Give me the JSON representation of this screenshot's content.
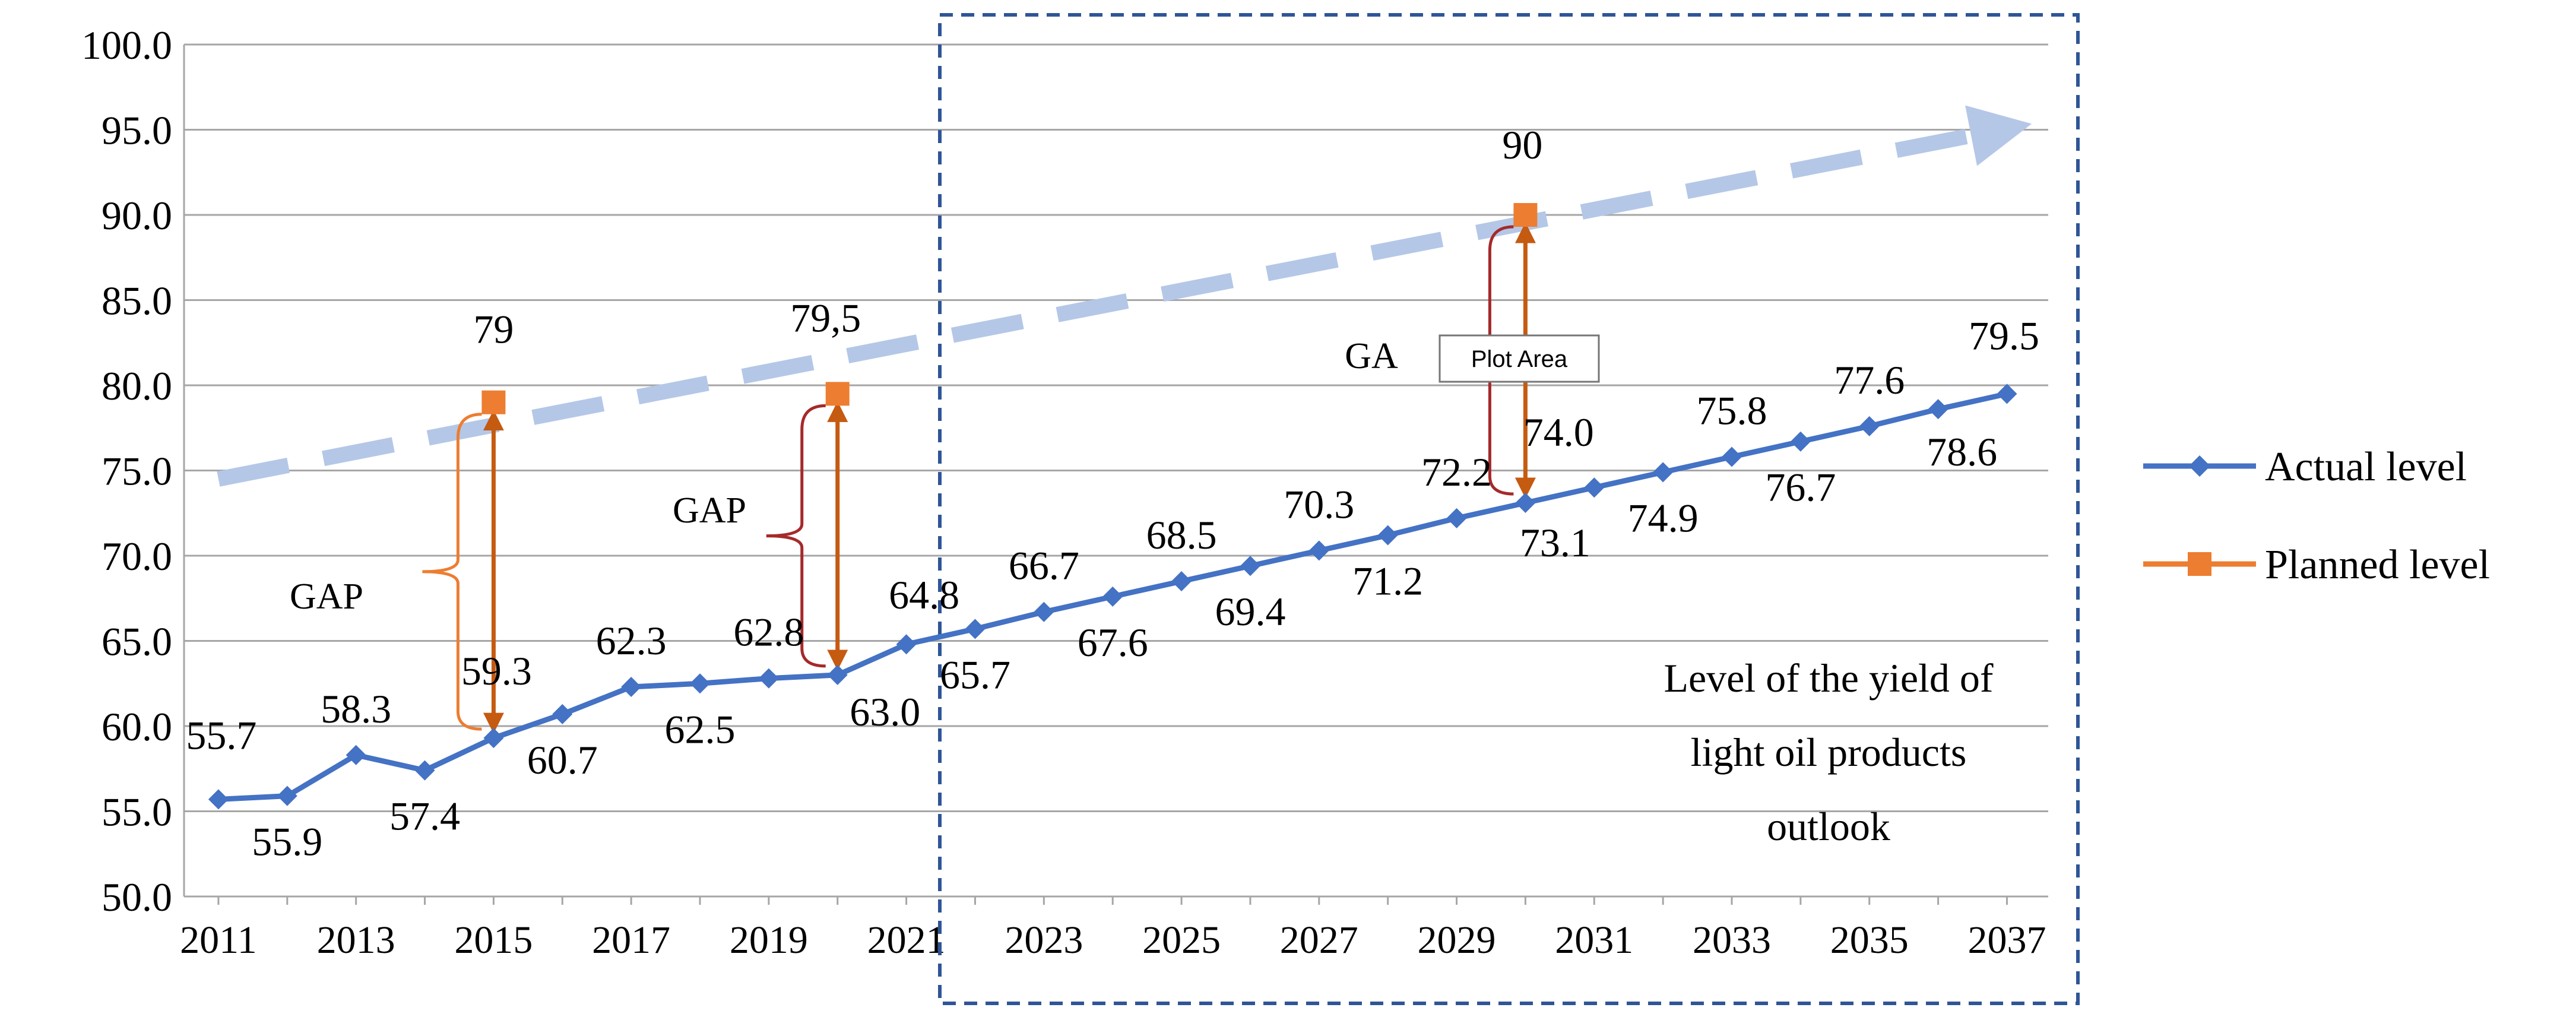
{
  "chart_data": {
    "type": "line",
    "title": "",
    "xlabel": "",
    "ylabel": "",
    "ylim": [
      50,
      100
    ],
    "y_ticks": [
      "50.0",
      "55.0",
      "60.0",
      "65.0",
      "70.0",
      "75.0",
      "80.0",
      "85.0",
      "90.0",
      "95.0",
      "100.0"
    ],
    "x_ticks": [
      "2011",
      "2013",
      "2015",
      "2017",
      "2019",
      "2021",
      "2023",
      "2025",
      "2027",
      "2029",
      "2031",
      "2033",
      "2035",
      "2037"
    ],
    "grid": true,
    "legend_position": "right",
    "series": [
      {
        "name": "Actual level",
        "color": "#4472C4",
        "marker": "diamond",
        "x": [
          2011,
          2012,
          2013,
          2014,
          2015,
          2016,
          2017,
          2018,
          2019,
          2020,
          2021,
          2022,
          2023,
          2024,
          2025,
          2026,
          2027,
          2028,
          2029,
          2030,
          2031,
          2032,
          2033,
          2034,
          2035,
          2036,
          2037
        ],
        "values": [
          55.7,
          55.9,
          58.3,
          57.4,
          59.3,
          60.7,
          62.3,
          62.5,
          62.8,
          63.0,
          64.8,
          65.7,
          66.7,
          67.6,
          68.5,
          69.4,
          70.3,
          71.2,
          72.2,
          73.1,
          74.0,
          74.9,
          75.8,
          76.7,
          77.6,
          78.6,
          79.5
        ],
        "labels": [
          "55.7",
          "55.9",
          "58.3",
          "57.4",
          "59.3",
          "60.7",
          "62.3",
          "62.5",
          "62.8",
          "63.0",
          "64.8",
          "65.7",
          "66.7",
          "67.6",
          "68.5",
          "69.4",
          "70.3",
          "71.2",
          "72.2",
          "73.1",
          "74.0",
          "74.9",
          "75.8",
          "76.7",
          "77.6",
          "78.6",
          "79.5"
        ]
      },
      {
        "name": "Planned level",
        "color": "#ED7D31",
        "marker": "square",
        "x": [
          2015,
          2020,
          2030
        ],
        "values": [
          79,
          79.5,
          90
        ],
        "labels": [
          "79",
          "79,5",
          "90"
        ]
      }
    ],
    "trend_arrow": {
      "from": [
        2011,
        74.5
      ],
      "to": [
        2037,
        95.0
      ],
      "color": "#B4C7E7"
    },
    "gap_annotations": [
      {
        "label": "GAP",
        "year": 2015,
        "from": 59.3,
        "to": 79
      },
      {
        "label": "GAP",
        "year": 2020,
        "from": 63.0,
        "to": 79.5
      },
      {
        "label": "GA",
        "year": 2030,
        "from": 73.1,
        "to": 90
      }
    ],
    "outlook_label_lines": [
      "Level of the yield of",
      "light oil products",
      "outlook"
    ],
    "tooltip": "Plot Area"
  }
}
